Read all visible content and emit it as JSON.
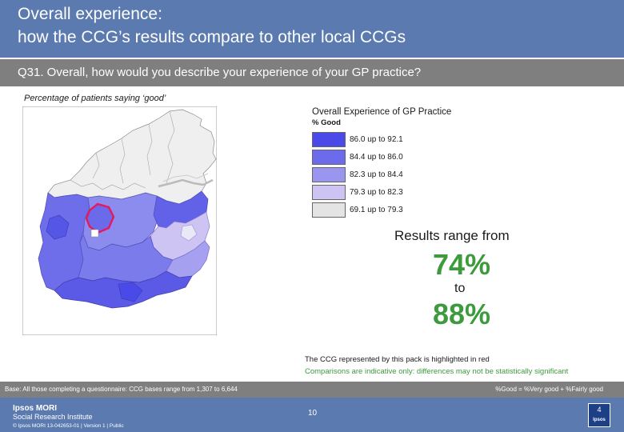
{
  "header": {
    "title_line1": "Overall experience:",
    "title_line2": "how the CCG’s results compare to other local CCGs"
  },
  "question": {
    "text": "Q31. Overall, how would you describe your experience of your GP practice?"
  },
  "subtitle": "Percentage of patients saying ‘good’",
  "legend": {
    "title": "Overall Experience of GP Practice",
    "subtitle": "% Good",
    "items": [
      {
        "label": "86.0 up to 92.1",
        "color": "#4a4ae8"
      },
      {
        "label": "84.4 up to 86.0",
        "color": "#6b6bec"
      },
      {
        "label": "82.3 up to 84.4",
        "color": "#9a95ef"
      },
      {
        "label": "79.3 up to 82.3",
        "color": "#cdc4f3"
      },
      {
        "label": "69.1 up to 79.3",
        "color": "#e4e4e4"
      }
    ]
  },
  "results": {
    "range_label": "Results range from",
    "low": "74%",
    "to_label": "to",
    "high": "88%"
  },
  "notes": {
    "highlight": "The CCG represented by this pack is highlighted in red",
    "comparison": "Comparisons are indicative only: differences may not be statistically significant"
  },
  "base": {
    "left": "Base: All those completing a questionnaire: CCG bases range from 1,307 to 6,644",
    "right": "%Good = %Very good + %Fairly good"
  },
  "footer": {
    "brand_line1": "Ipsos MORI",
    "brand_line2": "Social Research Institute",
    "copyright": "© Ipsos MORI     13-042653-01 | Version 1 | Public",
    "page_number": "10",
    "logo_number": "4",
    "logo_text": "Ipsos"
  },
  "colors": {
    "header_bar": "#5b7ab0",
    "question_bar": "#7f7f7f",
    "accent_green": "#3d9a3d",
    "highlight_red": "#e8185a"
  }
}
